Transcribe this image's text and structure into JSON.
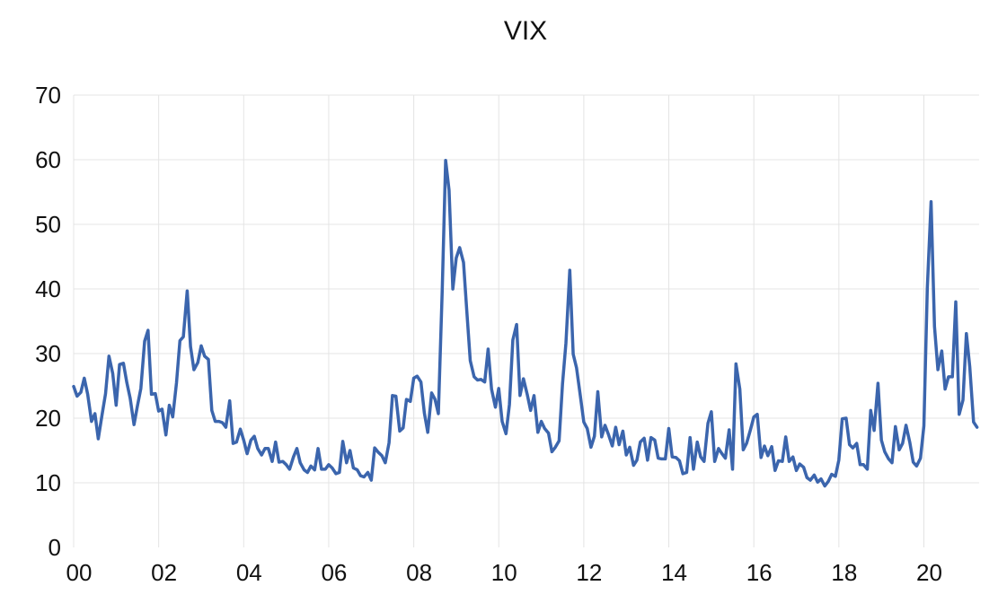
{
  "chart_data": {
    "type": "line",
    "title": "VIX",
    "xlabel": "",
    "ylabel": "",
    "xlim": [
      2000.0,
      2021.3
    ],
    "ylim": [
      0,
      70
    ],
    "y_ticks": [
      0,
      10,
      20,
      30,
      40,
      50,
      60,
      70
    ],
    "x_ticks": [
      {
        "value": 2000,
        "label": "00"
      },
      {
        "value": 2002,
        "label": "02"
      },
      {
        "value": 2004,
        "label": "04"
      },
      {
        "value": 2006,
        "label": "06"
      },
      {
        "value": 2008,
        "label": "08"
      },
      {
        "value": 2010,
        "label": "10"
      },
      {
        "value": 2012,
        "label": "12"
      },
      {
        "value": 2014,
        "label": "14"
      },
      {
        "value": 2016,
        "label": "16"
      },
      {
        "value": 2018,
        "label": "18"
      },
      {
        "value": 2020,
        "label": "20"
      }
    ],
    "grid": true,
    "line_color": "#3b65ad",
    "series": [
      {
        "x": [
          2000.0,
          2000.08,
          2000.17,
          2000.25,
          2000.33,
          2000.42,
          2000.5,
          2000.58,
          2000.67,
          2000.75,
          2000.83,
          2000.92,
          2001.0,
          2001.08,
          2001.17,
          2001.25,
          2001.33,
          2001.42,
          2001.5,
          2001.58,
          2001.67,
          2001.75,
          2001.83,
          2001.92,
          2002.0,
          2002.08,
          2002.17,
          2002.25,
          2002.33,
          2002.42,
          2002.5,
          2002.58,
          2002.67,
          2002.75,
          2002.83,
          2002.92,
          2003.0,
          2003.08,
          2003.17,
          2003.25,
          2003.33,
          2003.42,
          2003.5,
          2003.58,
          2003.67,
          2003.75,
          2003.83,
          2003.92,
          2004.0,
          2004.08,
          2004.17,
          2004.25,
          2004.33,
          2004.42,
          2004.5,
          2004.58,
          2004.67,
          2004.75,
          2004.83,
          2004.92,
          2005.0,
          2005.08,
          2005.17,
          2005.25,
          2005.33,
          2005.42,
          2005.5,
          2005.58,
          2005.67,
          2005.75,
          2005.83,
          2005.92,
          2006.0,
          2006.08,
          2006.17,
          2006.25,
          2006.33,
          2006.42,
          2006.5,
          2006.58,
          2006.67,
          2006.75,
          2006.83,
          2006.92,
          2007.0,
          2007.08,
          2007.17,
          2007.25,
          2007.33,
          2007.42,
          2007.5,
          2007.58,
          2007.67,
          2007.75,
          2007.83,
          2007.92,
          2008.0,
          2008.08,
          2008.17,
          2008.25,
          2008.33,
          2008.42,
          2008.5,
          2008.58,
          2008.67,
          2008.75,
          2008.83,
          2008.92,
          2009.0,
          2009.08,
          2009.17,
          2009.25,
          2009.33,
          2009.42,
          2009.5,
          2009.58,
          2009.67,
          2009.75,
          2009.83,
          2009.92,
          2010.0,
          2010.08,
          2010.17,
          2010.25,
          2010.33,
          2010.42,
          2010.5,
          2010.58,
          2010.67,
          2010.75,
          2010.83,
          2010.92,
          2011.0,
          2011.08,
          2011.17,
          2011.25,
          2011.33,
          2011.42,
          2011.5,
          2011.58,
          2011.67,
          2011.75,
          2011.83,
          2011.92,
          2012.0,
          2012.08,
          2012.17,
          2012.25,
          2012.33,
          2012.42,
          2012.5,
          2012.58,
          2012.67,
          2012.75,
          2012.83,
          2012.92,
          2013.0,
          2013.08,
          2013.17,
          2013.25,
          2013.33,
          2013.42,
          2013.5,
          2013.58,
          2013.67,
          2013.75,
          2013.83,
          2013.92,
          2014.0,
          2014.08,
          2014.17,
          2014.25,
          2014.33,
          2014.42,
          2014.5,
          2014.58,
          2014.67,
          2014.75,
          2014.83,
          2014.92,
          2015.0,
          2015.08,
          2015.17,
          2015.25,
          2015.33,
          2015.42,
          2015.5,
          2015.58,
          2015.67,
          2015.75,
          2015.83,
          2015.92,
          2016.0,
          2016.08,
          2016.17,
          2016.25,
          2016.33,
          2016.42,
          2016.5,
          2016.58,
          2016.67,
          2016.75,
          2016.83,
          2016.92,
          2017.0,
          2017.08,
          2017.17,
          2017.25,
          2017.33,
          2017.42,
          2017.5,
          2017.58,
          2017.67,
          2017.75,
          2017.83,
          2017.92,
          2018.0,
          2018.08,
          2018.17,
          2018.25,
          2018.33,
          2018.42,
          2018.5,
          2018.58,
          2018.67,
          2018.75,
          2018.83,
          2018.92,
          2019.0,
          2019.08,
          2019.17,
          2019.25,
          2019.33,
          2019.42,
          2019.5,
          2019.58,
          2019.67,
          2019.75,
          2019.83,
          2019.92,
          2020.0,
          2020.08,
          2020.17,
          2020.25,
          2020.33,
          2020.42,
          2020.5,
          2020.58,
          2020.67,
          2020.75,
          2020.83,
          2020.92,
          2021.0,
          2021.08,
          2021.17,
          2021.25
        ],
        "values": [
          24.9,
          23.4,
          24.0,
          26.2,
          23.7,
          19.5,
          20.7,
          16.8,
          20.6,
          23.8,
          29.6,
          26.9,
          22.0,
          28.3,
          28.5,
          25.5,
          23.1,
          19.0,
          21.9,
          24.6,
          31.9,
          33.6,
          23.7,
          23.8,
          21.1,
          21.4,
          17.4,
          22.0,
          20.2,
          25.5,
          32.0,
          32.6,
          39.7,
          31.1,
          27.5,
          28.6,
          31.2,
          29.6,
          29.1,
          21.2,
          19.5,
          19.5,
          19.3,
          18.6,
          22.7,
          16.1,
          16.3,
          18.3,
          16.6,
          14.5,
          16.6,
          17.2,
          15.3,
          14.3,
          15.3,
          15.3,
          13.3,
          16.3,
          13.2,
          13.3,
          12.8,
          12.1,
          14.0,
          15.3,
          13.1,
          12.0,
          11.6,
          12.6,
          12.0,
          15.3,
          12.1,
          12.1,
          12.8,
          12.3,
          11.4,
          11.6,
          16.4,
          13.1,
          15.0,
          12.3,
          12.0,
          11.1,
          10.9,
          11.6,
          10.4,
          15.4,
          14.7,
          14.2,
          13.1,
          16.2,
          23.5,
          23.4,
          18.0,
          18.5,
          22.9,
          22.6,
          26.2,
          26.5,
          25.6,
          20.8,
          17.8,
          23.9,
          22.9,
          20.7,
          39.8,
          59.9,
          55.3,
          40.0,
          44.8,
          46.4,
          44.1,
          36.5,
          28.9,
          26.4,
          25.9,
          26.0,
          25.6,
          30.7,
          24.5,
          21.7,
          24.6,
          19.5,
          17.6,
          22.1,
          32.1,
          34.5,
          23.5,
          26.1,
          23.7,
          21.2,
          23.5,
          17.8,
          19.5,
          18.4,
          17.7,
          14.8,
          15.5,
          16.5,
          25.3,
          31.6,
          42.9,
          29.9,
          27.8,
          23.4,
          19.4,
          18.4,
          15.5,
          17.2,
          24.1,
          17.1,
          18.9,
          17.5,
          15.7,
          18.6,
          15.9,
          18.0,
          14.3,
          15.5,
          12.7,
          13.5,
          16.3,
          16.9,
          13.5,
          17.0,
          16.6,
          13.8,
          13.7,
          13.7,
          18.4,
          14.0,
          13.9,
          13.4,
          11.4,
          11.6,
          17.0,
          12.1,
          16.3,
          14.0,
          13.3,
          19.2,
          21.0,
          13.3,
          15.3,
          14.5,
          13.8,
          18.2,
          12.1,
          28.4,
          24.5,
          15.1,
          16.1,
          18.2,
          20.2,
          20.6,
          13.9,
          15.7,
          14.2,
          15.6,
          11.9,
          13.4,
          13.3,
          17.1,
          13.3,
          14.0,
          11.9,
          12.9,
          12.4,
          10.8,
          10.4,
          11.2,
          10.1,
          10.6,
          9.5,
          10.2,
          11.3,
          11.0,
          13.5,
          19.9,
          20.0,
          15.9,
          15.4,
          16.1,
          12.8,
          12.8,
          12.1,
          21.2,
          18.1,
          25.4,
          16.6,
          14.8,
          13.7,
          13.1,
          18.7,
          15.1,
          16.1,
          18.9,
          16.2,
          13.2,
          12.6,
          13.8,
          18.8,
          40.1,
          53.5,
          34.2,
          27.5,
          30.4,
          24.5,
          26.4,
          26.4,
          38.0,
          20.6,
          22.8,
          33.1,
          27.9,
          19.4,
          18.6
        ]
      }
    ]
  }
}
